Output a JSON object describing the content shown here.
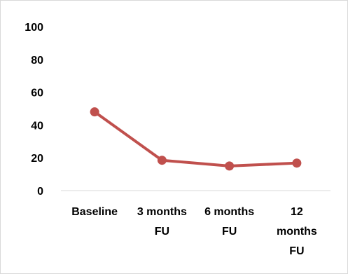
{
  "chart_data": {
    "type": "line",
    "title": "",
    "xlabel": "",
    "ylabel": "",
    "categories": [
      [
        "Baseline"
      ],
      [
        "3 months",
        "FU"
      ],
      [
        "6 months",
        "FU"
      ],
      [
        "12",
        "months",
        "FU"
      ]
    ],
    "series": [
      {
        "values": [
          48,
          18.5,
          15,
          16.8
        ],
        "color": "#c0504d"
      }
    ],
    "ylim": [
      0,
      100
    ],
    "yticks": [
      0,
      20,
      40,
      60,
      80,
      100
    ],
    "grid": false,
    "legend": "none",
    "marker": "circle"
  },
  "colors": {
    "series": "#c0504d",
    "axis": "#d9d9d9",
    "border": "#d9d9d9"
  }
}
